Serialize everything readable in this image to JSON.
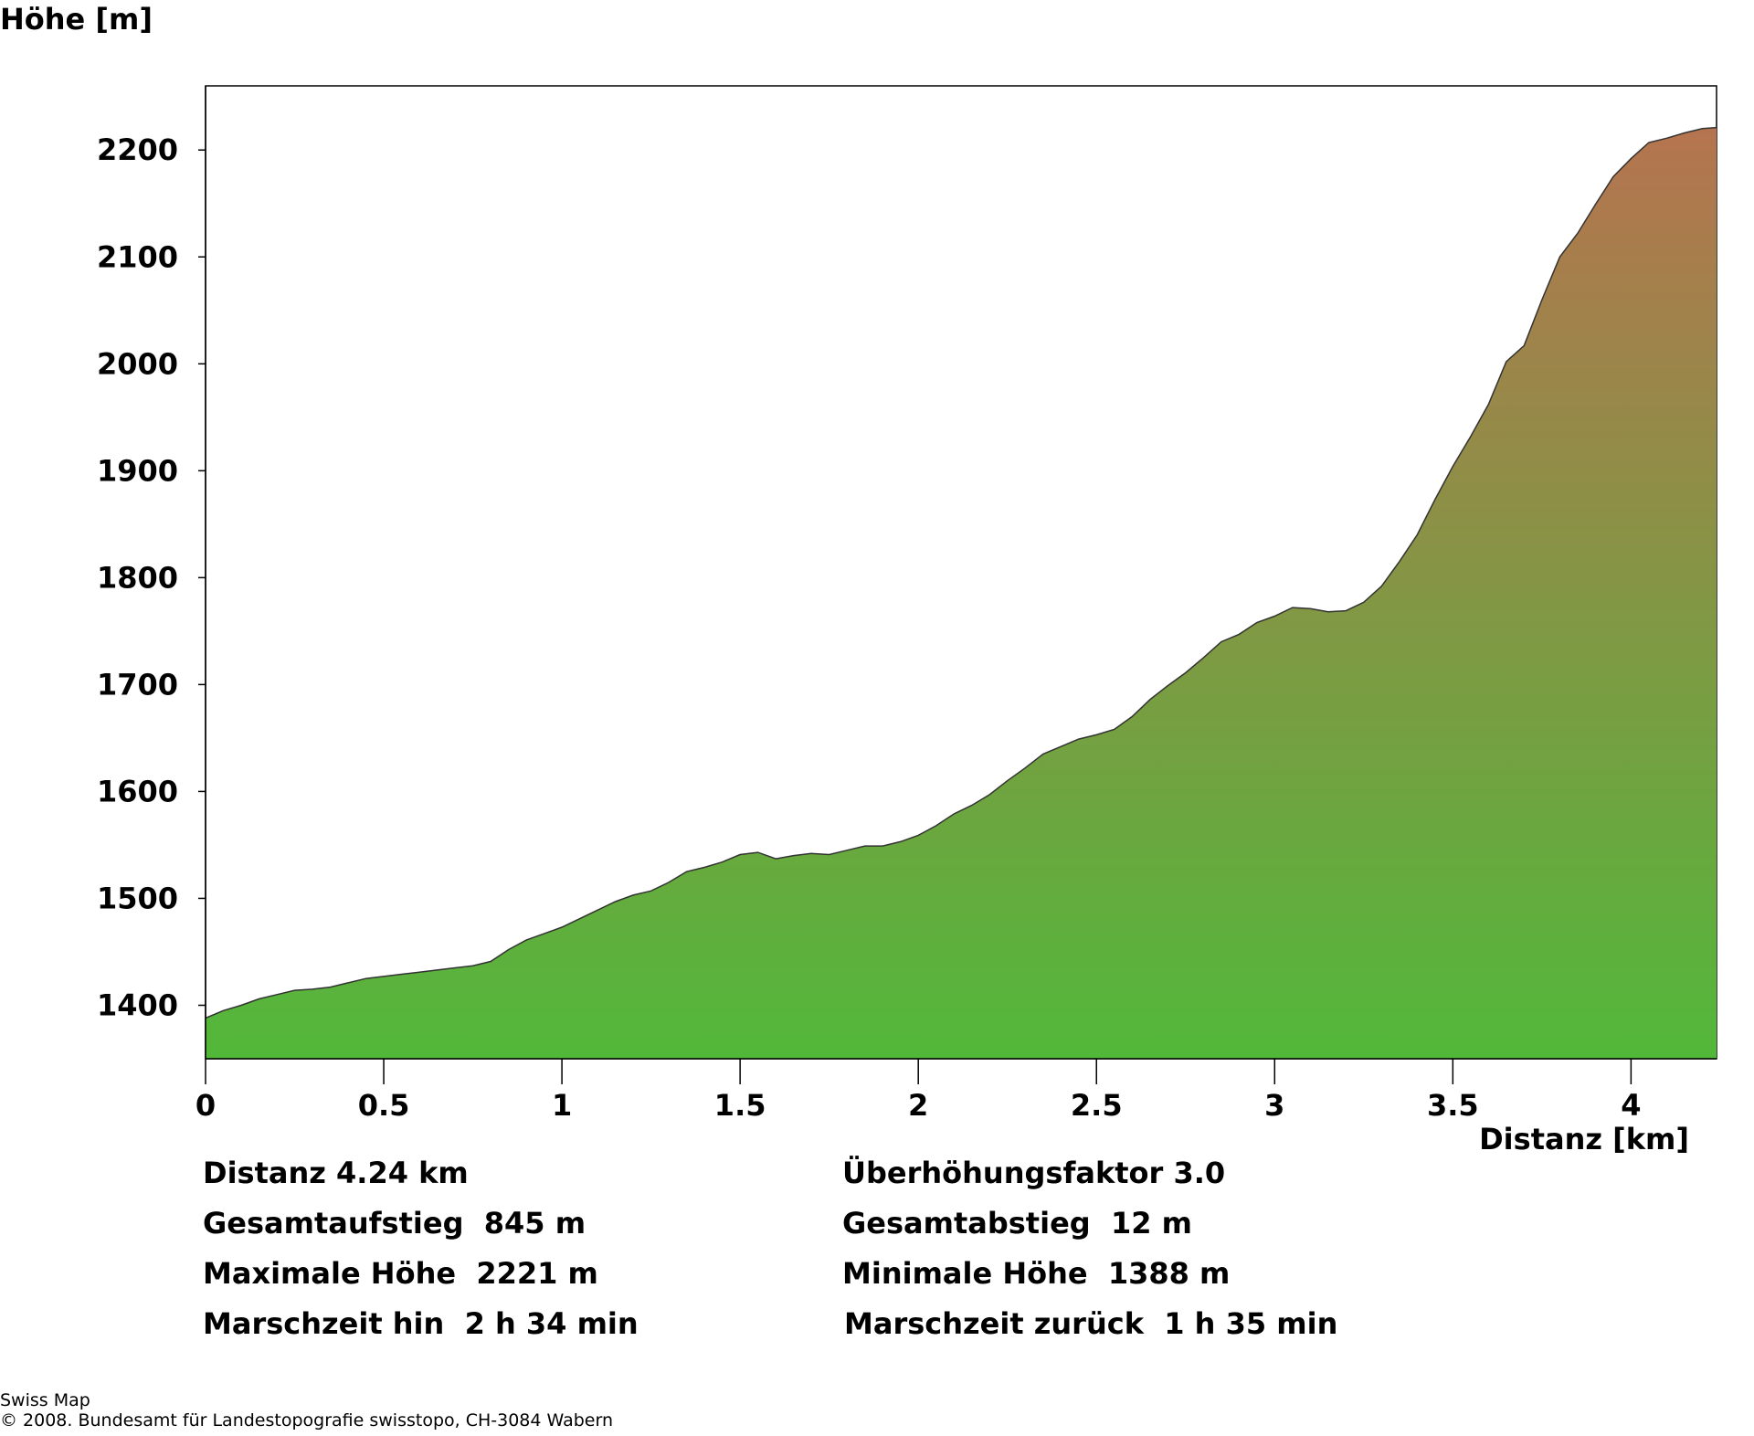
{
  "chart_data": {
    "type": "area",
    "ylabel": "Höhe [m]",
    "xlabel": "Distanz [km]",
    "xlim": [
      0,
      4.24
    ],
    "ylim": [
      1350,
      2260
    ],
    "x_ticks": [
      0,
      0.5,
      1,
      1.5,
      2,
      2.5,
      3,
      3.5,
      4
    ],
    "x_tick_labels": [
      "0",
      "0.5",
      "1",
      "1.5",
      "2",
      "2.5",
      "3",
      "3.5",
      "4"
    ],
    "y_ticks": [
      1400,
      1500,
      1600,
      1700,
      1800,
      1900,
      2000,
      2100,
      2200
    ],
    "y_tick_labels": [
      "1400",
      "1500",
      "1600",
      "1700",
      "1800",
      "1900",
      "2000",
      "2100",
      "2200"
    ],
    "fill_gradient": {
      "top": "#b5744f",
      "bottom": "#52b83a"
    },
    "outline_color": "#333333",
    "series": [
      {
        "x": [
          0,
          0.05,
          0.1,
          0.15,
          0.2,
          0.25,
          0.3,
          0.35,
          0.4,
          0.45,
          0.5,
          0.55,
          0.6,
          0.65,
          0.7,
          0.75,
          0.8,
          0.85,
          0.9,
          0.95,
          1.0,
          1.05,
          1.1,
          1.15,
          1.2,
          1.25,
          1.3,
          1.35,
          1.4,
          1.45,
          1.5,
          1.55,
          1.6,
          1.65,
          1.7,
          1.75,
          1.8,
          1.85,
          1.9,
          1.95,
          2.0,
          2.05,
          2.1,
          2.15,
          2.2,
          2.25,
          2.3,
          2.35,
          2.4,
          2.45,
          2.5,
          2.55,
          2.6,
          2.65,
          2.7,
          2.75,
          2.8,
          2.85,
          2.9,
          2.95,
          3.0,
          3.05,
          3.1,
          3.15,
          3.2,
          3.25,
          3.3,
          3.35,
          3.4,
          3.45,
          3.5,
          3.55,
          3.6,
          3.65,
          3.7,
          3.75,
          3.8,
          3.85,
          3.9,
          3.95,
          4.0,
          4.05,
          4.1,
          4.15,
          4.2,
          4.24
        ],
        "y": [
          1388,
          1395,
          1400,
          1406,
          1410,
          1414,
          1415,
          1417,
          1421,
          1425,
          1427,
          1429,
          1431,
          1433,
          1435,
          1437,
          1441,
          1452,
          1461,
          1467,
          1473,
          1481,
          1489,
          1497,
          1503,
          1507,
          1515,
          1525,
          1529,
          1534,
          1541,
          1543,
          1537,
          1540,
          1542,
          1541,
          1545,
          1549,
          1549,
          1553,
          1559,
          1568,
          1579,
          1587,
          1597,
          1610,
          1622,
          1635,
          1642,
          1649,
          1653,
          1658,
          1670,
          1686,
          1699,
          1711,
          1725,
          1740,
          1747,
          1758,
          1764,
          1772,
          1771,
          1768,
          1769,
          1777,
          1792,
          1815,
          1840,
          1873,
          1904,
          1932,
          1962,
          2002,
          2017,
          2060,
          2100,
          2122,
          2149,
          2175,
          2192,
          2207,
          2211,
          2216,
          2220,
          2221
        ]
      }
    ]
  },
  "stats": {
    "distanz": "Distanz 4.24 km",
    "ueberhoehung": "Überhöhungsfaktor 3.0",
    "gesamtaufstieg": "Gesamtaufstieg  845 m",
    "gesamtabstieg": "Gesamtabstieg  12 m",
    "max_hoehe": "Maximale Höhe  2221 m",
    "min_hoehe": "Minimale Höhe  1388 m",
    "marschzeit_hin": "Marschzeit hin  2 h 34 min",
    "marschzeit_zurueck": "Marschzeit zurück  1 h 35 min"
  },
  "credits": {
    "line1": "Swiss Map",
    "line2": "© 2008. Bundesamt für Landestopografie swisstopo, CH-3084 Wabern"
  }
}
